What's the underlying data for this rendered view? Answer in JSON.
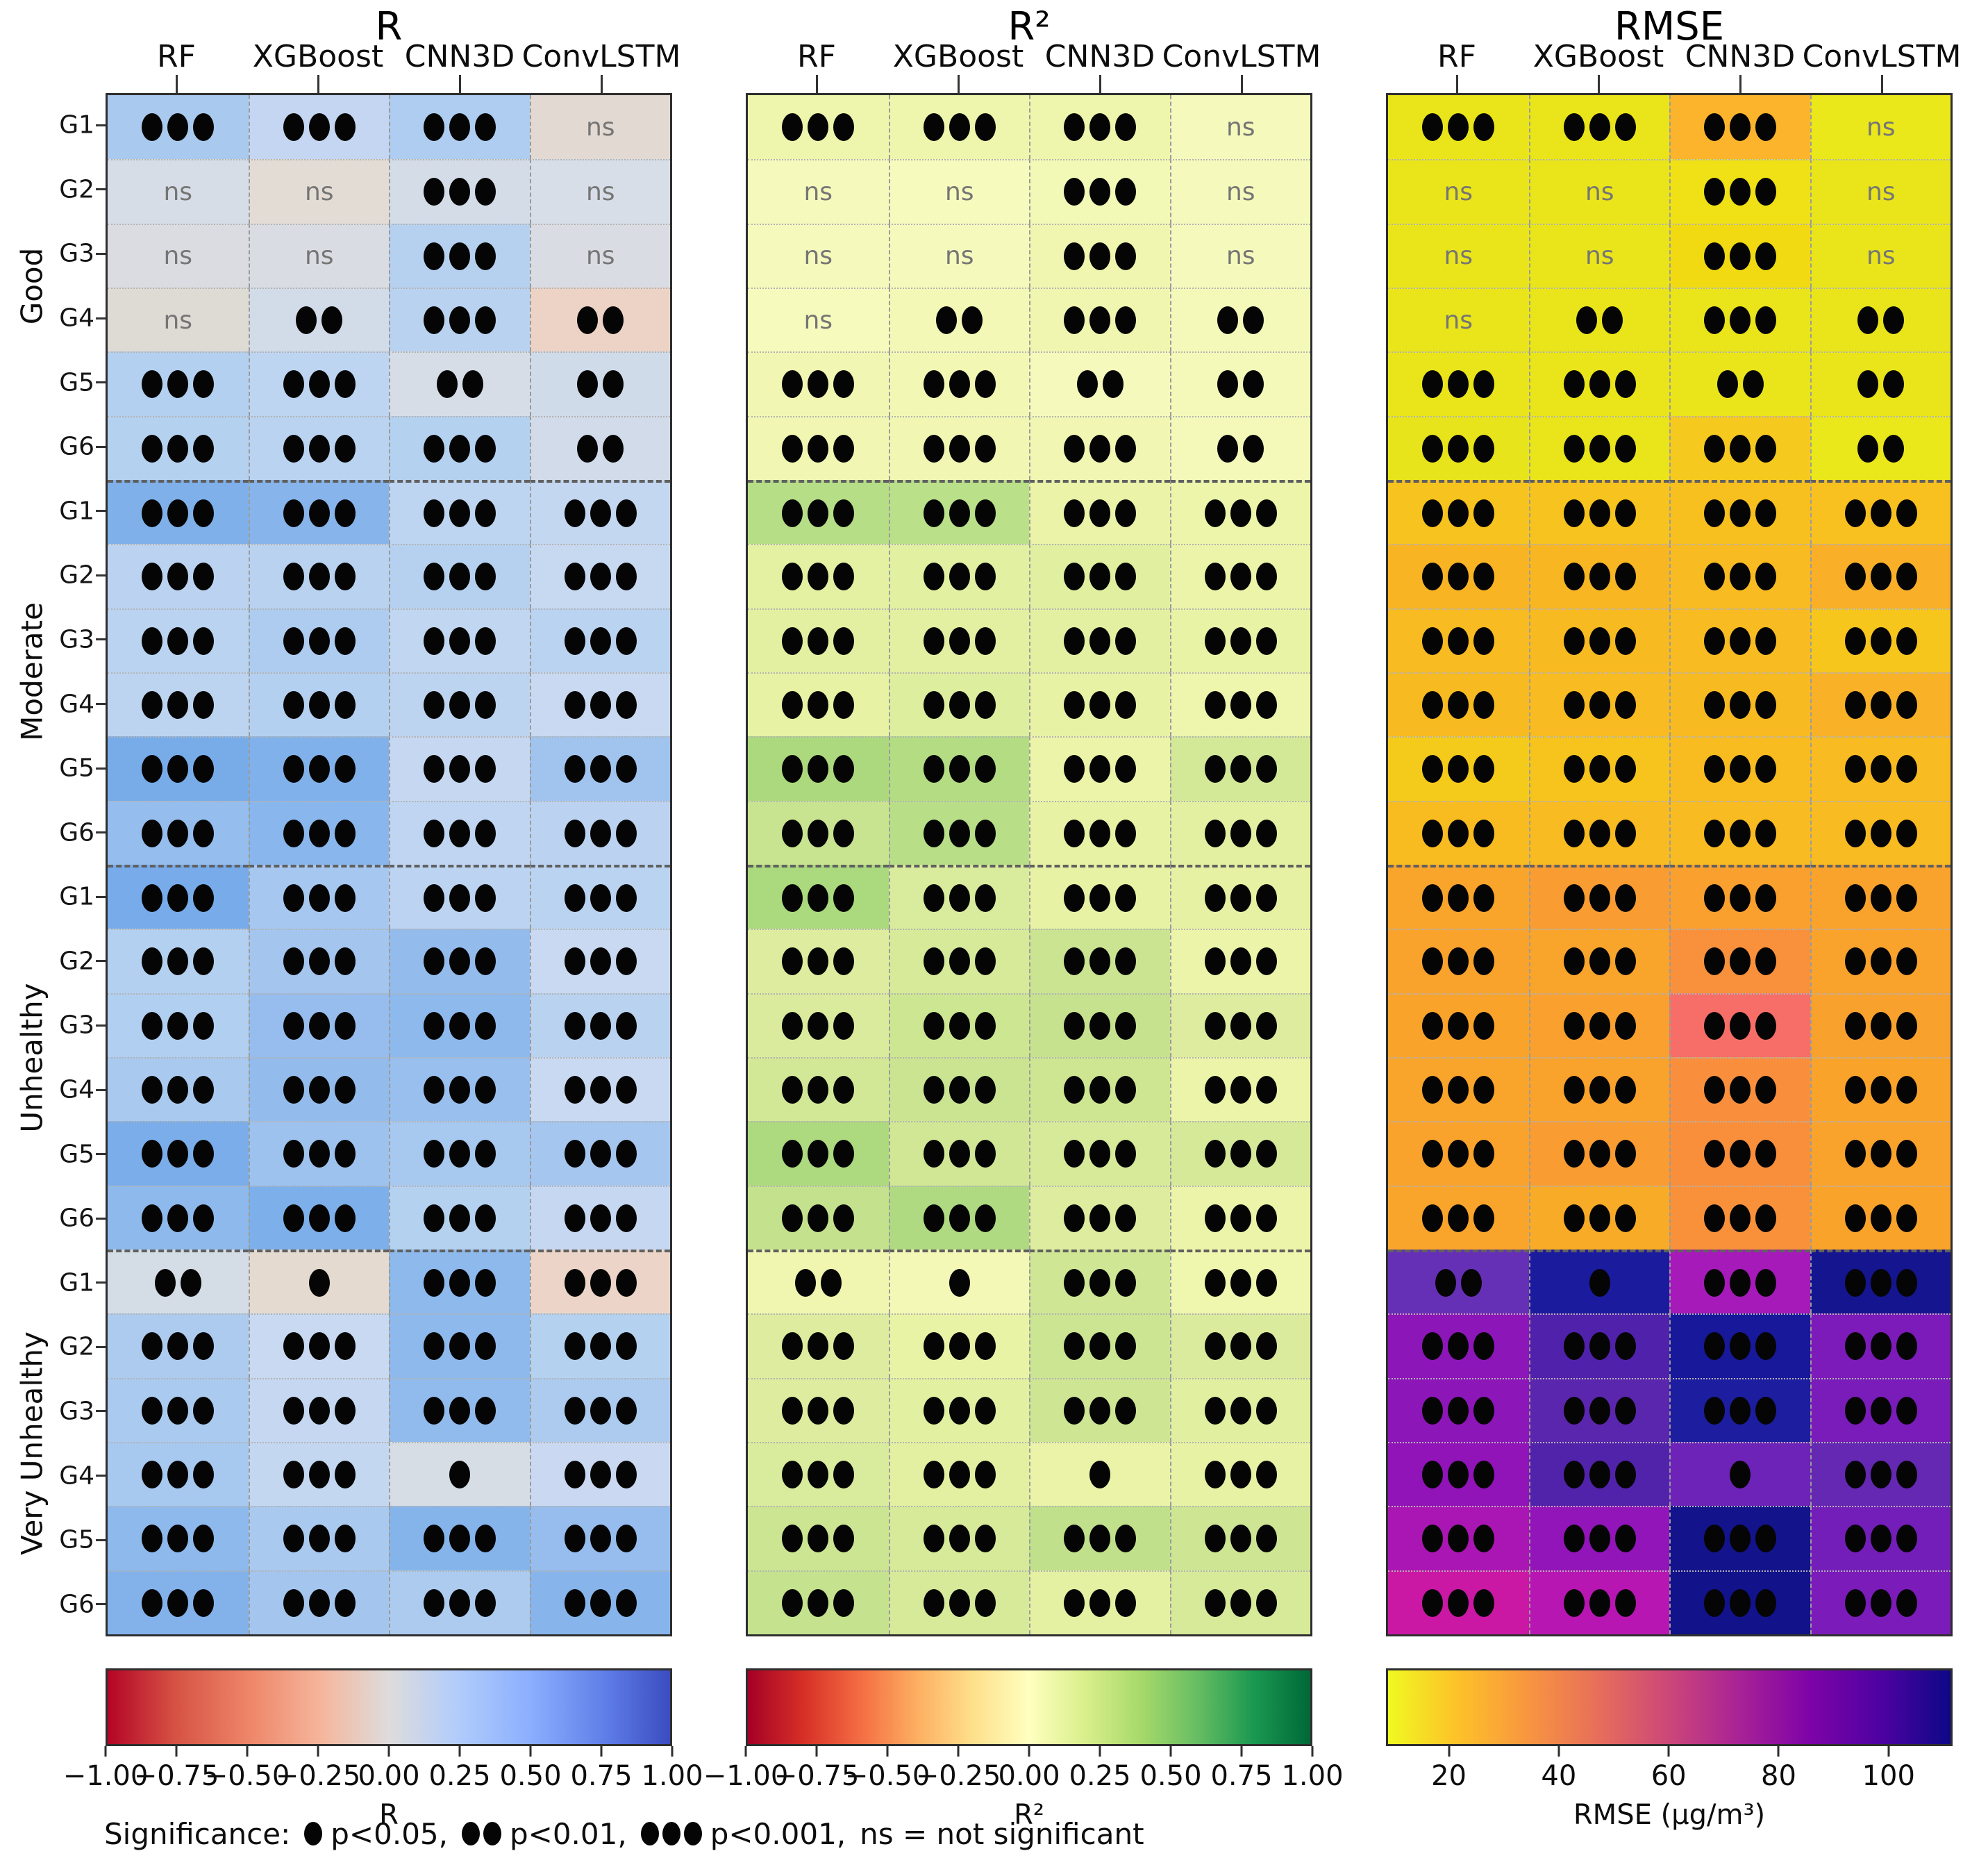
{
  "ui": {
    "ns_text": "ns",
    "significance_legend": {
      "prefix": "Significance:",
      "items": [
        {
          "dots": 1,
          "text": "p<0.05,"
        },
        {
          "dots": 2,
          "text": "p<0.01,"
        },
        {
          "dots": 3,
          "text": "p<0.001,"
        },
        {
          "dots": 0,
          "text": "ns = not significant"
        }
      ]
    }
  },
  "chart_data": {
    "type": "heatmap",
    "columns": [
      "RF",
      "XGBoost",
      "CNN3D",
      "ConvLSTM"
    ],
    "row_groups": [
      {
        "label": "Good",
        "rows": [
          "G1",
          "G2",
          "G3",
          "G4",
          "G5",
          "G6"
        ]
      },
      {
        "label": "Moderate",
        "rows": [
          "G1",
          "G2",
          "G3",
          "G4",
          "G5",
          "G6"
        ]
      },
      {
        "label": "Unhealthy",
        "rows": [
          "G1",
          "G2",
          "G3",
          "G4",
          "G5",
          "G6"
        ]
      },
      {
        "label": "Very Unhealthy",
        "rows": [
          "G1",
          "G2",
          "G3",
          "G4",
          "G5",
          "G6"
        ]
      }
    ],
    "significance_codes": {
      "3": "p<0.001",
      "2": "p<0.01",
      "1": "p<0.05",
      "ns": "not significant"
    },
    "significance": [
      [
        3,
        3,
        3,
        "ns"
      ],
      [
        "ns",
        "ns",
        3,
        "ns"
      ],
      [
        "ns",
        "ns",
        3,
        "ns"
      ],
      [
        "ns",
        2,
        3,
        2
      ],
      [
        3,
        3,
        2,
        2
      ],
      [
        3,
        3,
        3,
        2
      ],
      [
        3,
        3,
        3,
        3
      ],
      [
        3,
        3,
        3,
        3
      ],
      [
        3,
        3,
        3,
        3
      ],
      [
        3,
        3,
        3,
        3
      ],
      [
        3,
        3,
        3,
        3
      ],
      [
        3,
        3,
        3,
        3
      ],
      [
        3,
        3,
        3,
        3
      ],
      [
        3,
        3,
        3,
        3
      ],
      [
        3,
        3,
        3,
        3
      ],
      [
        3,
        3,
        3,
        3
      ],
      [
        3,
        3,
        3,
        3
      ],
      [
        3,
        3,
        3,
        3
      ],
      [
        2,
        1,
        3,
        3
      ],
      [
        3,
        3,
        3,
        3
      ],
      [
        3,
        3,
        3,
        3
      ],
      [
        3,
        3,
        1,
        3
      ],
      [
        3,
        3,
        3,
        3
      ],
      [
        3,
        3,
        3,
        3
      ]
    ],
    "panels": [
      {
        "title": "R",
        "colormap": "red-white-blue (coolwarm reversed)",
        "colorbar": {
          "label": "R",
          "range": [
            -1,
            1
          ],
          "ticks": [
            "−1.00",
            "−0.75",
            "−0.50",
            "−0.25",
            "0.00",
            "0.25",
            "0.50",
            "0.75",
            "1.00"
          ],
          "tick_positions": [
            0,
            12.5,
            25,
            37.5,
            50,
            62.5,
            75,
            87.5,
            100
          ],
          "gradient": [
            "#b40426 0%",
            "#d65244 12%",
            "#ee8568 25%",
            "#f5b69c 38%",
            "#dedcdc 50%",
            "#b2cdfb 62%",
            "#8caffe 75%",
            "#6180e9 88%",
            "#3b4cc0 100%"
          ]
        },
        "cells": [
          [
            "#a9c9ee",
            "#c4d6f1",
            "#aecdf0",
            "#e2d9d2"
          ],
          [
            "#d6dde6",
            "#e3dcd5",
            "#d4dce7",
            "#d7dee8"
          ],
          [
            "#dadce1",
            "#d9dce2",
            "#b6d1f0",
            "#d9dce2"
          ],
          [
            "#dedad4",
            "#d2dbe8",
            "#b8d2f0",
            "#ecd3c5"
          ],
          [
            "#b3d0f0",
            "#bed5f1",
            "#d6dde6",
            "#d0dbea"
          ],
          [
            "#b5d1f0",
            "#bad3f1",
            "#b5d1f0",
            "#d2dbe9"
          ],
          [
            "#7fb0ea",
            "#87b5eb",
            "#bed5f1",
            "#c3d7f1"
          ],
          [
            "#bbd3f1",
            "#b9d2f0",
            "#b6d1f0",
            "#c7d8f1"
          ],
          [
            "#bad3f1",
            "#adccef",
            "#c1d6f1",
            "#bad3f1"
          ],
          [
            "#bdd4f1",
            "#b4d0f0",
            "#bdd4f1",
            "#c9d9f1"
          ],
          [
            "#78ace9",
            "#81b1ea",
            "#c5d7f1",
            "#a0c4ee"
          ],
          [
            "#95bded",
            "#89b6ec",
            "#bfd5f1",
            "#bbd3f1"
          ],
          [
            "#77abe9",
            "#a6c7ef",
            "#bcd4f1",
            "#bad3f0"
          ],
          [
            "#b4d0f0",
            "#a3c5ee",
            "#93bced",
            "#c8d9f1"
          ],
          [
            "#b1cff0",
            "#96bded",
            "#8db9ec",
            "#b9d2f0"
          ],
          [
            "#a9c9ef",
            "#93bced",
            "#98bfee",
            "#c8d9f1"
          ],
          [
            "#7aade9",
            "#9dc2ee",
            "#a7c8ef",
            "#a5c6ee"
          ],
          [
            "#8eb9ec",
            "#7db0ea",
            "#b5d1f0",
            "#c5d7f1"
          ],
          [
            "#d4dce6",
            "#e4dad0",
            "#8db9ec",
            "#ecd5c8"
          ],
          [
            "#accbef",
            "#c8d9f1",
            "#8eb9ec",
            "#b5d1f0"
          ],
          [
            "#abcaef",
            "#c6d8f1",
            "#91bbec",
            "#accbef"
          ],
          [
            "#a7c8ef",
            "#c4d7f1",
            "#d6dde5",
            "#cad9f1"
          ],
          [
            "#8db9ec",
            "#aac9ef",
            "#85b4eb",
            "#96bded"
          ],
          [
            "#83b2eb",
            "#a4c6ee",
            "#accbef",
            "#87b5eb"
          ]
        ]
      },
      {
        "title": "R²",
        "colormap": "red-yellow-green (RdYlGn)",
        "colorbar": {
          "label": "R²",
          "range": [
            -1,
            1
          ],
          "ticks": [
            "−1.00",
            "−0.75",
            "−0.50",
            "−0.25",
            "0.00",
            "0.25",
            "0.50",
            "0.75",
            "1.00"
          ],
          "tick_positions": [
            0,
            12.5,
            25,
            37.5,
            50,
            62.5,
            75,
            87.5,
            100
          ],
          "gradient": [
            "#a50026 0%",
            "#d73027 10%",
            "#f46d43 20%",
            "#fdae61 30%",
            "#fee08b 40%",
            "#ffffbf 50%",
            "#d9ef8b 60%",
            "#a6d96a 70%",
            "#66bd63 80%",
            "#1a9850 90%",
            "#006837 100%"
          ]
        },
        "cells": [
          [
            "#eef5ac",
            "#eef5ac",
            "#eef5ac",
            "#f5f9bc"
          ],
          [
            "#f5f9bc",
            "#f6fabd",
            "#f2f8b5",
            "#f5f9bc"
          ],
          [
            "#f5f9bc",
            "#f5f9bc",
            "#f0f6b0",
            "#f5f9bc"
          ],
          [
            "#f6fabd",
            "#f3f8b7",
            "#f0f6b0",
            "#f4f9ba"
          ],
          [
            "#f1f7b2",
            "#f2f8b4",
            "#f5f9bc",
            "#f4f9b9"
          ],
          [
            "#f1f7b2",
            "#f1f7b2",
            "#f1f7b3",
            "#f4f9ba"
          ],
          [
            "#b6de86",
            "#bae089",
            "#eaf3a8",
            "#edf5ab"
          ],
          [
            "#e4f0a2",
            "#e2f0a1",
            "#e0efa0",
            "#ebf4a8"
          ],
          [
            "#e3f0a1",
            "#e3f0a1",
            "#e3f0a1",
            "#e9f3a6"
          ],
          [
            "#e7f2a4",
            "#deee9f",
            "#e8f2a5",
            "#eef5ac"
          ],
          [
            "#acd97e",
            "#b3dc83",
            "#ecf4a9",
            "#d4e998"
          ],
          [
            "#c9e491",
            "#b8df88",
            "#e7f2a4",
            "#e3f0a1"
          ],
          [
            "#abd97d",
            "#d9eb9c",
            "#e8f2a5",
            "#e6f1a3"
          ],
          [
            "#ddec9e",
            "#d6ea9a",
            "#cae492",
            "#ecf4a9"
          ],
          [
            "#daeb9d",
            "#cde691",
            "#c6e28f",
            "#ddec9e"
          ],
          [
            "#d3e897",
            "#cae492",
            "#cee692",
            "#ecf4a9"
          ],
          [
            "#add97f",
            "#d1e795",
            "#d7ea9a",
            "#d5e999"
          ],
          [
            "#c4e28d",
            "#afda81",
            "#ddec9e",
            "#ebf4a8"
          ],
          [
            "#f0f6b0",
            "#f3f8b6",
            "#cfe694",
            "#eff6ae"
          ],
          [
            "#ddec9e",
            "#e9f3a6",
            "#cce593",
            "#daeb9d"
          ],
          [
            "#ddec9e",
            "#e2f0a1",
            "#cee694",
            "#e1efa0"
          ],
          [
            "#d9eb9c",
            "#e3f0a1",
            "#eaf3a7",
            "#e7f2a4"
          ],
          [
            "#cce593",
            "#d6ea9a",
            "#c0e08b",
            "#cee694"
          ],
          [
            "#c5e28e",
            "#d6ea9a",
            "#e4f0a2",
            "#d6ea9a"
          ]
        ]
      },
      {
        "title": "RMSE",
        "colormap": "yellow-orange-magenta-darkblue (plasma reversed)",
        "colorbar": {
          "label": "RMSE (μg/m³)",
          "range": [
            10,
            111
          ],
          "ticks": [
            "20",
            "40",
            "60",
            "80",
            "100"
          ],
          "tick_positions": [
            11.1,
            30.5,
            49.9,
            69.3,
            88.7
          ],
          "gradient": [
            "#f0f921 0%",
            "#fdc328 12%",
            "#f89540 25%",
            "#e66c5c 38%",
            "#cc4778 50%",
            "#aa2395 62%",
            "#7e03a8 75%",
            "#4c02a1 88%",
            "#0d0887 100%"
          ]
        },
        "cells": [
          [
            "#e9e51a",
            "#e9e51a",
            "#fcb42c",
            "#eae71b"
          ],
          [
            "#e9e51a",
            "#e9e51a",
            "#efe115",
            "#e9e51a"
          ],
          [
            "#e9e51a",
            "#e9e51a",
            "#f1da12",
            "#e9e51a"
          ],
          [
            "#e9e51a",
            "#e9e51a",
            "#eae41a",
            "#e9e51a"
          ],
          [
            "#e9e51a",
            "#e9e51a",
            "#e9e51a",
            "#e9e51a"
          ],
          [
            "#e8e41b",
            "#e9e51a",
            "#f6c91f",
            "#eae71b"
          ],
          [
            "#f7c31e",
            "#f7c31e",
            "#f8c01f",
            "#f8c11f"
          ],
          [
            "#f9b424",
            "#f9b623",
            "#f8bb21",
            "#f9b028"
          ],
          [
            "#f8bb21",
            "#f8ba21",
            "#f8bb21",
            "#f6c61d"
          ],
          [
            "#f8ba21",
            "#f8bb21",
            "#f8ba21",
            "#f9b127"
          ],
          [
            "#f5cb1b",
            "#f7c41e",
            "#f8bc21",
            "#f8bb21"
          ],
          [
            "#f8bc21",
            "#f8bb21",
            "#f8bb21",
            "#f8bb21"
          ],
          [
            "#f9a42b",
            "#f99c32",
            "#f9a02e",
            "#f9a22c"
          ],
          [
            "#f9a22c",
            "#f9a42b",
            "#f9903b",
            "#f9a22c"
          ],
          [
            "#f9a32b",
            "#f9a02e",
            "#f76e68",
            "#f9a12d"
          ],
          [
            "#f9a42b",
            "#f9a22c",
            "#f98f3c",
            "#f9a32b"
          ],
          [
            "#f9a22c",
            "#f99c32",
            "#f98f3b",
            "#f9a22c"
          ],
          [
            "#f9a52b",
            "#f8ab27",
            "#f9913b",
            "#f9a32b"
          ],
          [
            "#6630b6",
            "#1b1b9e",
            "#a61ab9",
            "#15158f"
          ],
          [
            "#8d16b9",
            "#5022ab",
            "#18189a",
            "#7c1bb9"
          ],
          [
            "#8d16b9",
            "#5b26ae",
            "#1d1d9f",
            "#7a1cb9"
          ],
          [
            "#9014b8",
            "#5123ab",
            "#6e23b8",
            "#6428b2"
          ],
          [
            "#aa16b3",
            "#9115b8",
            "#13138c",
            "#731eb9"
          ],
          [
            "#ca18a5",
            "#b816b2",
            "#12128b",
            "#7b1bb9"
          ]
        ]
      }
    ]
  }
}
